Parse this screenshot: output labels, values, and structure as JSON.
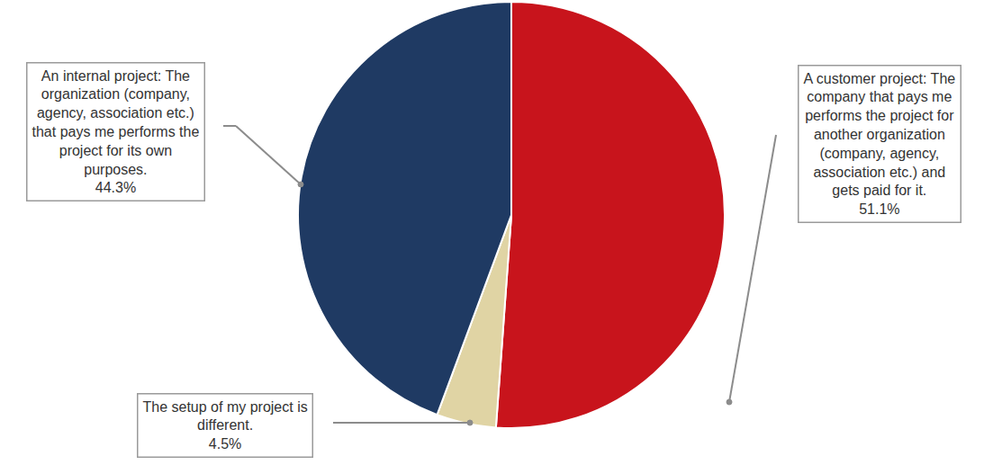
{
  "chart_data": {
    "type": "pie",
    "categories": [
      "A customer project: The company that pays me performs the project for another organization (company, agency, association etc.) and gets paid for it.",
      "The setup of my project is different.",
      "An internal project: The organization (company, agency, association etc.) that pays me performs the project for its own purposes."
    ],
    "values": [
      51.1,
      4.5,
      44.3
    ],
    "value_labels": [
      "51.1%",
      "4.5%",
      "44.3%"
    ],
    "colors": [
      "#c8141c",
      "#e0d4a4",
      "#1f3a63"
    ],
    "data_labels": true
  }
}
